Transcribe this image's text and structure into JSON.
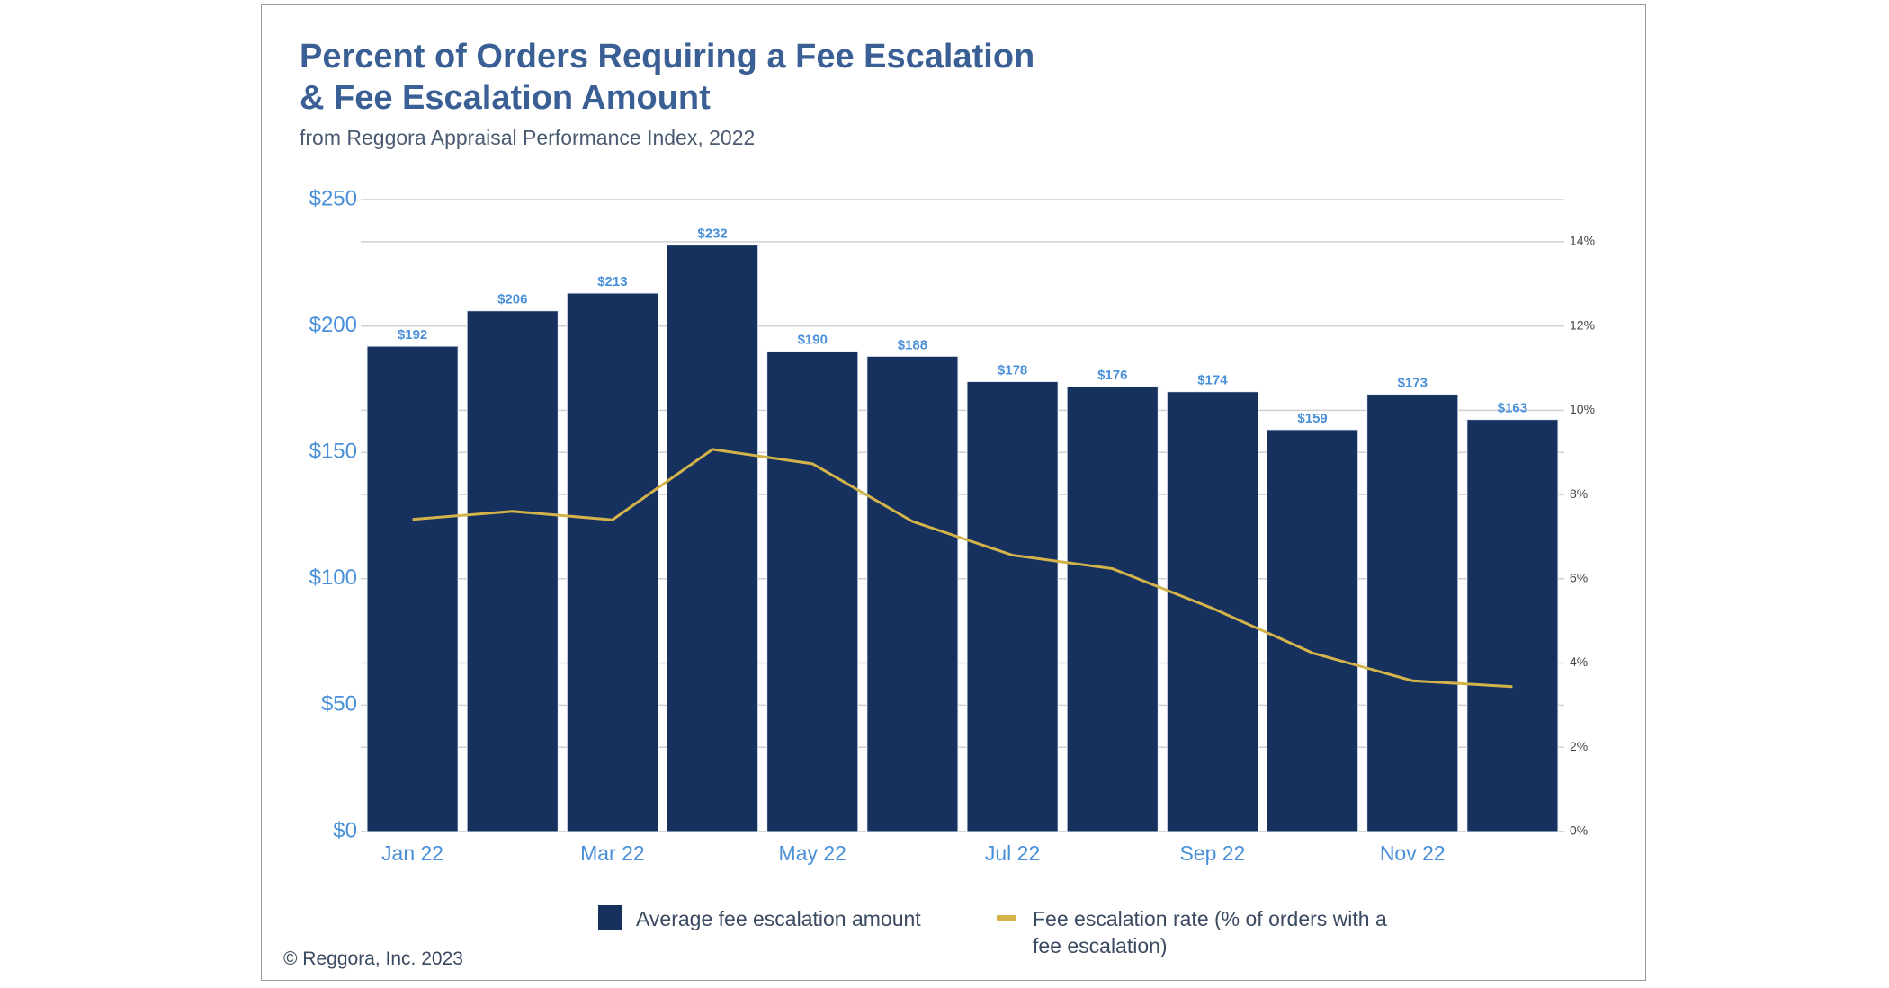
{
  "chart_data": {
    "type": "bar_line",
    "title": [
      "Percent of Orders Requiring a Fee Escalation",
      "& Fee Escalation Amount"
    ],
    "subtitle": "from Reggora Appraisal Performance Index, 2022",
    "footnote": "© Reggora, Inc. 2023",
    "categories": [
      "Jan 22",
      null,
      "Mar 22",
      null,
      "May 22",
      null,
      "Jul 22",
      null,
      "Sep 22",
      null,
      "Nov 22",
      null
    ],
    "series": [
      {
        "name": "Average fee escalation amount",
        "color": "#17315f",
        "type": "bar",
        "values": [
          192,
          206,
          213,
          232,
          190,
          188,
          178,
          176,
          174,
          159,
          173,
          163
        ],
        "value_labels": [
          "$192",
          "$206",
          "$213",
          "$232",
          "$190",
          "$188",
          "$178",
          "$176",
          "$174",
          "$159",
          "$173",
          "$163"
        ]
      },
      {
        "name": "Fee escalation rate (% of orders with a fee escalation)",
        "color": "#d4b44a",
        "type": "line",
        "axis": "y2",
        "values": [
          7.41,
          7.6,
          7.4,
          9.07,
          8.73,
          7.36,
          6.56,
          6.24,
          5.3,
          4.24,
          3.58,
          3.44
        ]
      }
    ],
    "ylim": [
      0,
      250
    ],
    "yticks": [
      {
        "value": 0,
        "label": "$0"
      },
      {
        "value": 50,
        "label": "$50"
      },
      {
        "value": 100,
        "label": "$100"
      },
      {
        "value": 150,
        "label": "$150"
      },
      {
        "value": 200,
        "label": "$200"
      },
      {
        "value": 250,
        "label": "$250"
      }
    ],
    "y2lim": [
      0,
      15
    ],
    "y2ticks": [
      {
        "value": 0,
        "label": "0%"
      },
      {
        "value": 2,
        "label": "2%"
      },
      {
        "value": 4,
        "label": "4%"
      },
      {
        "value": 6,
        "label": "6%"
      },
      {
        "value": 8,
        "label": "8%"
      },
      {
        "value": 10,
        "label": "10%"
      },
      {
        "value": 12,
        "label": "12%"
      },
      {
        "value": 14,
        "label": "14%"
      }
    ],
    "grid": true
  }
}
